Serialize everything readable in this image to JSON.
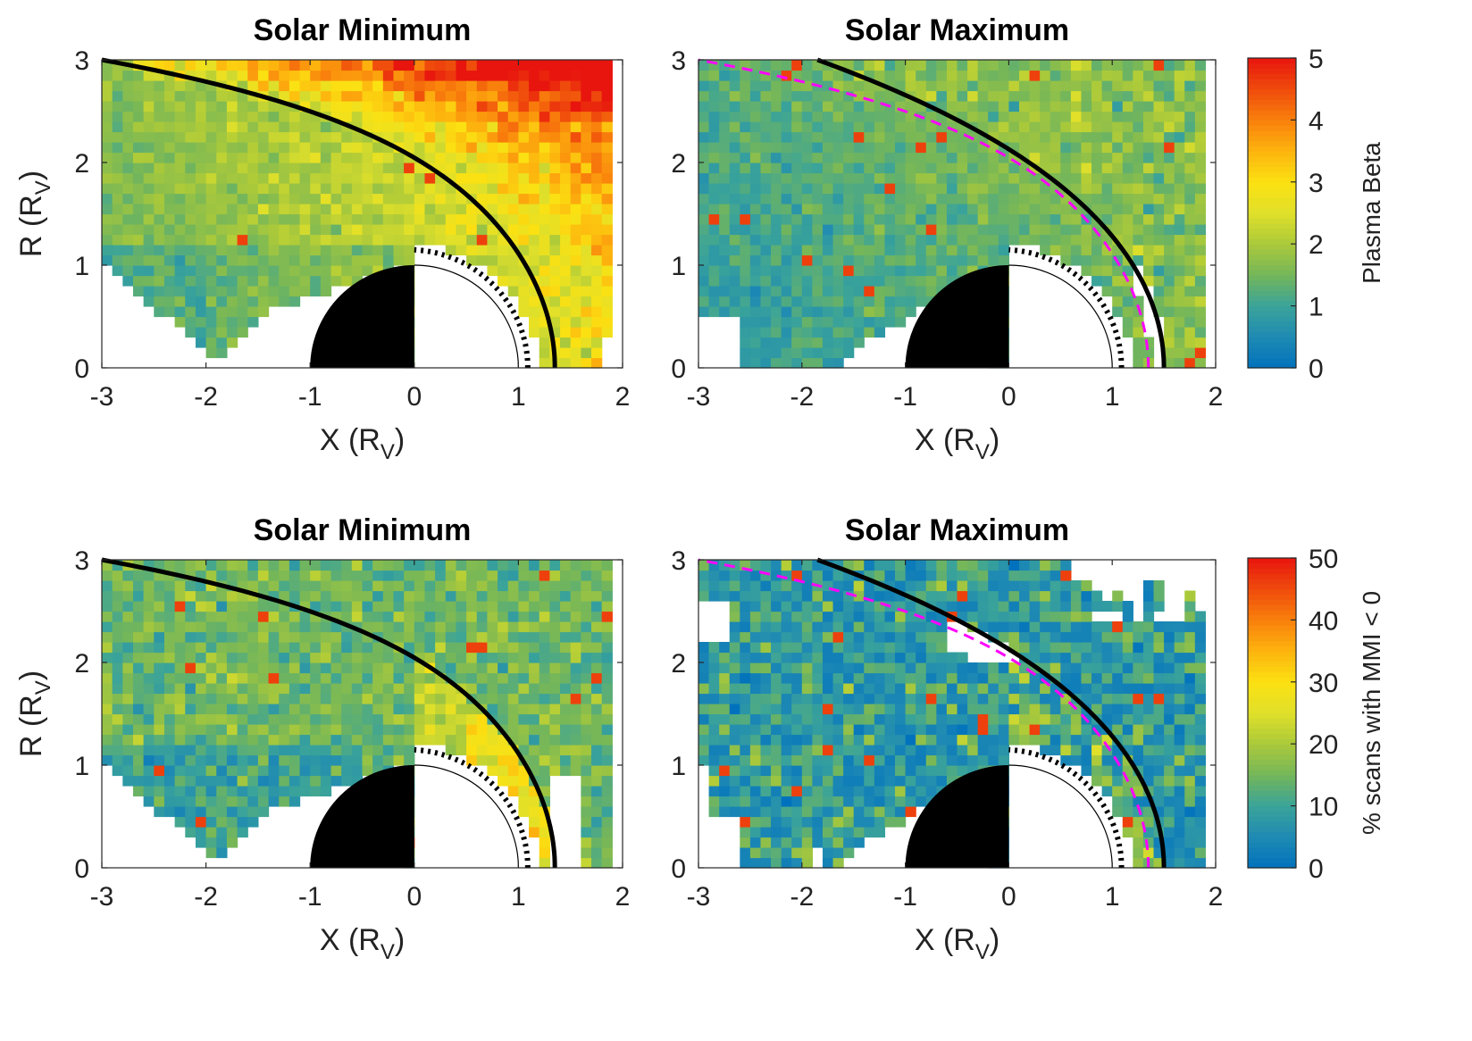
{
  "chart_data": [
    {
      "type": "heatmap",
      "title": "Solar Minimum",
      "xlabel": "X (R",
      "xlabel_sub": "V",
      "xlabel_close": ")",
      "ylabel": "R (R",
      "ylabel_sub": "V",
      "ylabel_close": ")",
      "xlim": [
        -3,
        2
      ],
      "ylim": [
        0,
        3
      ],
      "xticks": [
        "-3",
        "-2",
        "-1",
        "0",
        "1",
        "2"
      ],
      "yticks": [
        "0",
        "1",
        "2",
        "3"
      ],
      "quantity": "Plasma Beta",
      "color_range": [
        0,
        5
      ],
      "pattern": "beta_min",
      "boundaries": [
        "bow-shock",
        "ionopause-dotted"
      ]
    },
    {
      "type": "heatmap",
      "title": "Solar Maximum",
      "xlabel": "X (R",
      "xlabel_sub": "V",
      "xlabel_close": ")",
      "ylabel": "",
      "ylabel_sub": "",
      "ylabel_close": "",
      "xlim": [
        -3,
        2
      ],
      "ylim": [
        0,
        3
      ],
      "xticks": [
        "-3",
        "-2",
        "-1",
        "0",
        "1",
        "2"
      ],
      "yticks": [
        "0",
        "1",
        "2",
        "3"
      ],
      "quantity": "Plasma Beta",
      "color_range": [
        0,
        5
      ],
      "pattern": "beta_max",
      "boundaries": [
        "bow-shock",
        "ionopause-dotted",
        "min-bow-shock-dashed"
      ],
      "colorbar": {
        "label": "Plasma Beta",
        "ticks": [
          "0",
          "1",
          "2",
          "3",
          "4",
          "5"
        ]
      }
    },
    {
      "type": "heatmap",
      "title": "Solar Minimum",
      "xlabel": "X (R",
      "xlabel_sub": "V",
      "xlabel_close": ")",
      "ylabel": "R (R",
      "ylabel_sub": "V",
      "ylabel_close": ")",
      "xlim": [
        -3,
        2
      ],
      "ylim": [
        0,
        3
      ],
      "xticks": [
        "-3",
        "-2",
        "-1",
        "0",
        "1",
        "2"
      ],
      "yticks": [
        "0",
        "1",
        "2",
        "3"
      ],
      "quantity": "% scans with MMI < 0",
      "color_range": [
        0,
        50
      ],
      "pattern": "mmi_min",
      "boundaries": [
        "bow-shock",
        "ionopause-dotted"
      ]
    },
    {
      "type": "heatmap",
      "title": "Solar Maximum",
      "xlabel": "X (R",
      "xlabel_sub": "V",
      "xlabel_close": ")",
      "ylabel": "",
      "ylabel_sub": "",
      "ylabel_close": "",
      "xlim": [
        -3,
        2
      ],
      "ylim": [
        0,
        3
      ],
      "xticks": [
        "-3",
        "-2",
        "-1",
        "0",
        "1",
        "2"
      ],
      "yticks": [
        "0",
        "1",
        "2",
        "3"
      ],
      "quantity": "% scans with MMI < 0",
      "color_range": [
        0,
        50
      ],
      "pattern": "mmi_max",
      "boundaries": [
        "bow-shock",
        "ionopause-dotted",
        "min-bow-shock-dashed"
      ],
      "colorbar": {
        "label": "% scans with MMI < 0",
        "ticks": [
          "0",
          "10",
          "20",
          "30",
          "40",
          "50"
        ]
      }
    }
  ],
  "colors": {
    "colormap": [
      "#0072bd",
      "#1f8ab3",
      "#3aa39a",
      "#74b65a",
      "#aac93a",
      "#e0e02a",
      "#fbe112",
      "#fdb40e",
      "#f9800c",
      "#ef4b0c",
      "#e8150e"
    ],
    "bow_shock": "#000000",
    "min_bow_shock": "#ff00ff",
    "venus": "#000000"
  }
}
